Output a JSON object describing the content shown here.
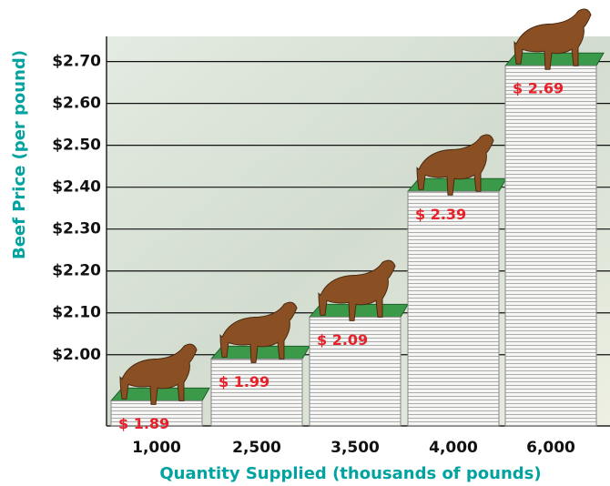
{
  "chart_data": {
    "type": "bar",
    "x_label": "Quantity Supplied (thousands of pounds)",
    "y_label": "Beef Price (per pound)",
    "categories": [
      "1,000",
      "2,500",
      "3,500",
      "4,000",
      "6,000"
    ],
    "values": [
      1.89,
      1.99,
      2.09,
      2.39,
      2.69
    ],
    "value_labels": [
      "$ 1.89",
      "$ 1.99",
      "$ 2.09",
      "$ 2.39",
      "$ 2.69"
    ],
    "color": "#f4f4f2",
    "ylim": [
      1.83,
      2.76
    ],
    "yticks": [
      {
        "value": 2.0,
        "label": "$2.00"
      },
      {
        "value": 2.1,
        "label": "$2.10"
      },
      {
        "value": 2.2,
        "label": "$2.20"
      },
      {
        "value": 2.3,
        "label": "$2.30"
      },
      {
        "value": 2.4,
        "label": "$2.40"
      },
      {
        "value": 2.5,
        "label": "$2.50"
      },
      {
        "value": 2.6,
        "label": "$2.60"
      },
      {
        "value": 2.7,
        "label": "$2.70"
      }
    ],
    "grid": true
  }
}
